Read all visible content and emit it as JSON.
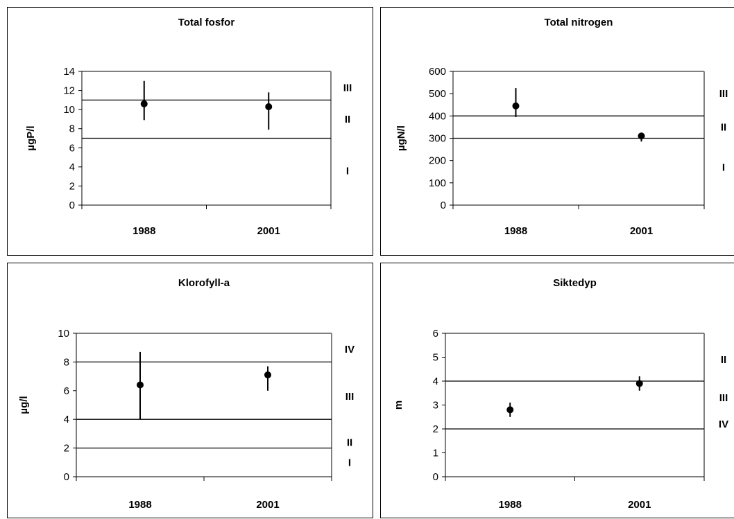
{
  "chart_data": [
    {
      "type": "scatter",
      "title": "Total fosfor",
      "xlabel": "",
      "ylabel": "µgP/l",
      "categories": [
        "1988",
        "2001"
      ],
      "ylim": [
        0,
        14
      ],
      "yticks": [
        0,
        2,
        4,
        6,
        8,
        10,
        12,
        14
      ],
      "grid": false,
      "points": [
        {
          "x": "1988",
          "y": 10.6,
          "low": 8.9,
          "high": 13.0
        },
        {
          "x": "2001",
          "y": 10.3,
          "low": 7.9,
          "high": 11.8
        }
      ],
      "thresholds": [
        7,
        11
      ],
      "class_labels": [
        {
          "label": "III",
          "y": 12.3
        },
        {
          "label": "II",
          "y": 9.0
        },
        {
          "label": "I",
          "y": 3.6
        }
      ]
    },
    {
      "type": "scatter",
      "title": "Total nitrogen",
      "xlabel": "",
      "ylabel": "µgN/l",
      "categories": [
        "1988",
        "2001"
      ],
      "ylim": [
        0,
        600
      ],
      "yticks": [
        0,
        100,
        200,
        300,
        400,
        500,
        600
      ],
      "grid": false,
      "points": [
        {
          "x": "1988",
          "y": 445,
          "low": 395,
          "high": 525
        },
        {
          "x": "2001",
          "y": 310,
          "low": 285,
          "high": 325
        }
      ],
      "thresholds": [
        300,
        400
      ],
      "class_labels": [
        {
          "label": "III",
          "y": 500
        },
        {
          "label": "II",
          "y": 350
        },
        {
          "label": "I",
          "y": 170
        }
      ]
    },
    {
      "type": "scatter",
      "title": "Klorofyll-a",
      "xlabel": "",
      "ylabel": "µg/l",
      "categories": [
        "1988",
        "2001"
      ],
      "ylim": [
        0,
        10
      ],
      "yticks": [
        0,
        2,
        4,
        6,
        8,
        10
      ],
      "grid": false,
      "points": [
        {
          "x": "1988",
          "y": 6.4,
          "low": 4.0,
          "high": 8.7
        },
        {
          "x": "2001",
          "y": 7.1,
          "low": 6.0,
          "high": 7.7
        }
      ],
      "thresholds": [
        2,
        4,
        8
      ],
      "class_labels": [
        {
          "label": "IV",
          "y": 8.9
        },
        {
          "label": "III",
          "y": 5.6
        },
        {
          "label": "II",
          "y": 2.4
        },
        {
          "label": "I",
          "y": 1.0
        }
      ]
    },
    {
      "type": "scatter",
      "title": "Siktedyp",
      "xlabel": "",
      "ylabel": "m",
      "categories": [
        "1988",
        "2001"
      ],
      "ylim": [
        0,
        6
      ],
      "yticks": [
        0,
        1,
        2,
        3,
        4,
        5,
        6
      ],
      "grid": false,
      "points": [
        {
          "x": "1988",
          "y": 2.8,
          "low": 2.5,
          "high": 3.1
        },
        {
          "x": "2001",
          "y": 3.9,
          "low": 3.6,
          "high": 4.2
        }
      ],
      "thresholds": [
        2,
        4
      ],
      "class_labels": [
        {
          "label": "II",
          "y": 4.9
        },
        {
          "label": "III",
          "y": 3.3
        },
        {
          "label": "IV",
          "y": 2.2
        }
      ]
    }
  ]
}
